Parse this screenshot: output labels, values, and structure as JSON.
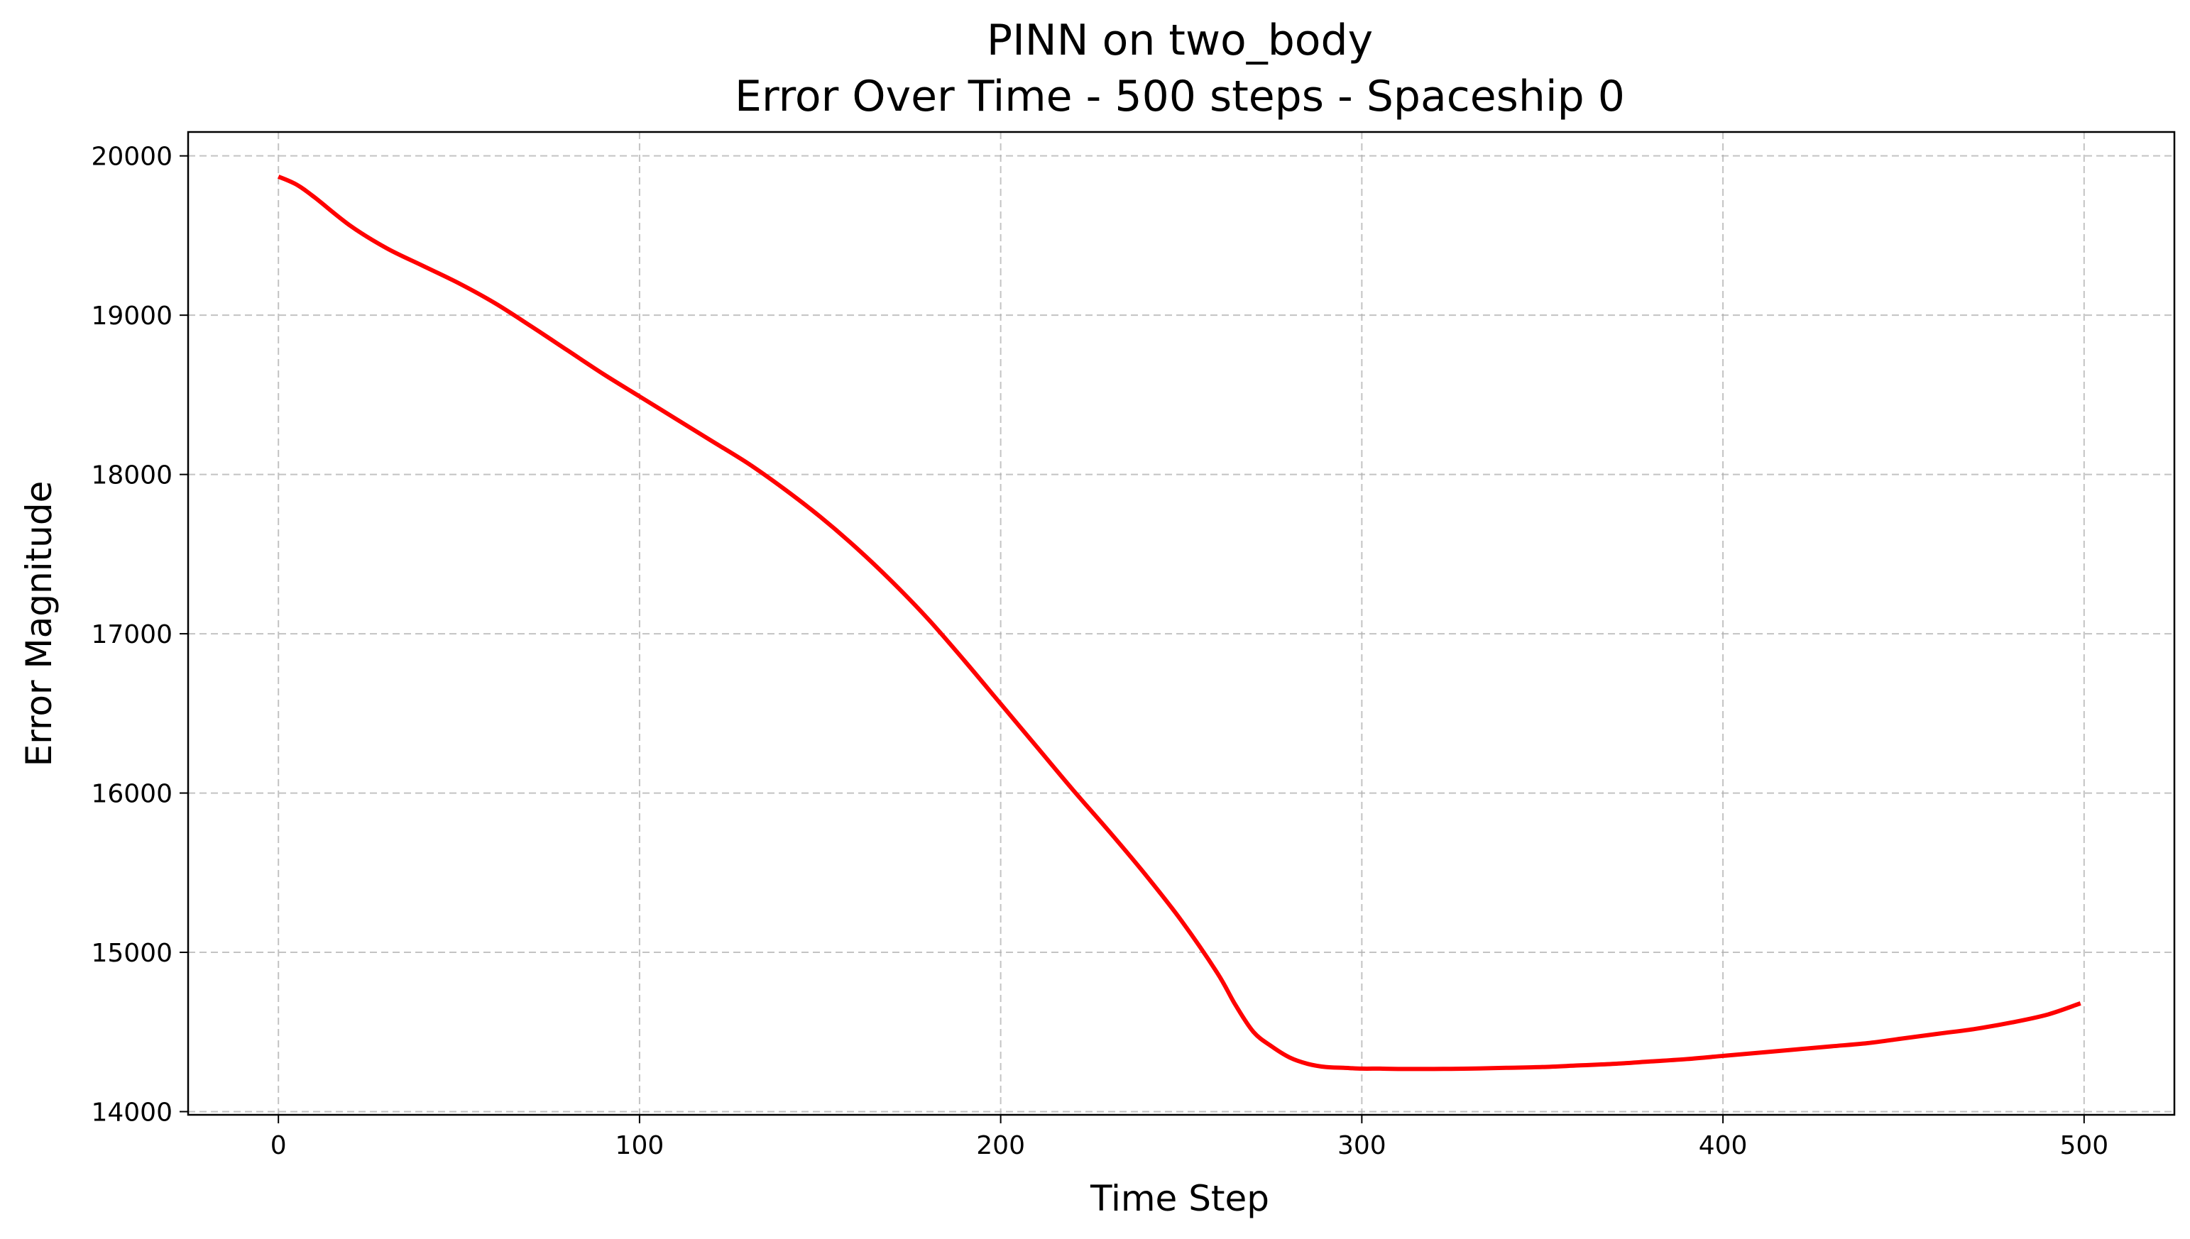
{
  "chart_data": {
    "type": "line",
    "title": "PINN on two_body",
    "subtitle": "Error Over Time - 500 steps - Spaceship 0",
    "xlabel": "Time Step",
    "ylabel": "Error Magnitude",
    "xlim": [
      -25,
      525
    ],
    "ylim": [
      13980,
      20150
    ],
    "x_ticks": [
      0,
      100,
      200,
      300,
      400,
      500
    ],
    "y_ticks": [
      14000,
      15000,
      16000,
      17000,
      18000,
      19000,
      20000
    ],
    "x_tick_labels": [
      "0",
      "100",
      "200",
      "300",
      "400",
      "500"
    ],
    "y_tick_labels": [
      "14000",
      "15000",
      "16000",
      "17000",
      "18000",
      "19000",
      "20000"
    ],
    "grid": true,
    "series": [
      {
        "color": "#ff0000",
        "x": [
          0,
          5,
          10,
          20,
          30,
          40,
          50,
          60,
          70,
          80,
          90,
          100,
          110,
          120,
          130,
          140,
          150,
          160,
          170,
          180,
          190,
          200,
          210,
          220,
          230,
          240,
          250,
          260,
          265,
          270,
          275,
          280,
          285,
          290,
          295,
          300,
          305,
          310,
          320,
          330,
          340,
          350,
          360,
          370,
          380,
          390,
          400,
          410,
          420,
          430,
          440,
          450,
          460,
          470,
          480,
          490,
          499
        ],
        "y": [
          19870,
          19820,
          19740,
          19560,
          19420,
          19310,
          19200,
          19075,
          18930,
          18780,
          18630,
          18490,
          18350,
          18210,
          18070,
          17910,
          17735,
          17540,
          17325,
          17090,
          16830,
          16560,
          16290,
          16020,
          15760,
          15490,
          15200,
          14870,
          14670,
          14500,
          14410,
          14340,
          14300,
          14280,
          14275,
          14270,
          14270,
          14268,
          14268,
          14270,
          14275,
          14280,
          14290,
          14300,
          14315,
          14330,
          14350,
          14370,
          14390,
          14410,
          14430,
          14460,
          14490,
          14520,
          14560,
          14610,
          14680
        ]
      }
    ]
  }
}
